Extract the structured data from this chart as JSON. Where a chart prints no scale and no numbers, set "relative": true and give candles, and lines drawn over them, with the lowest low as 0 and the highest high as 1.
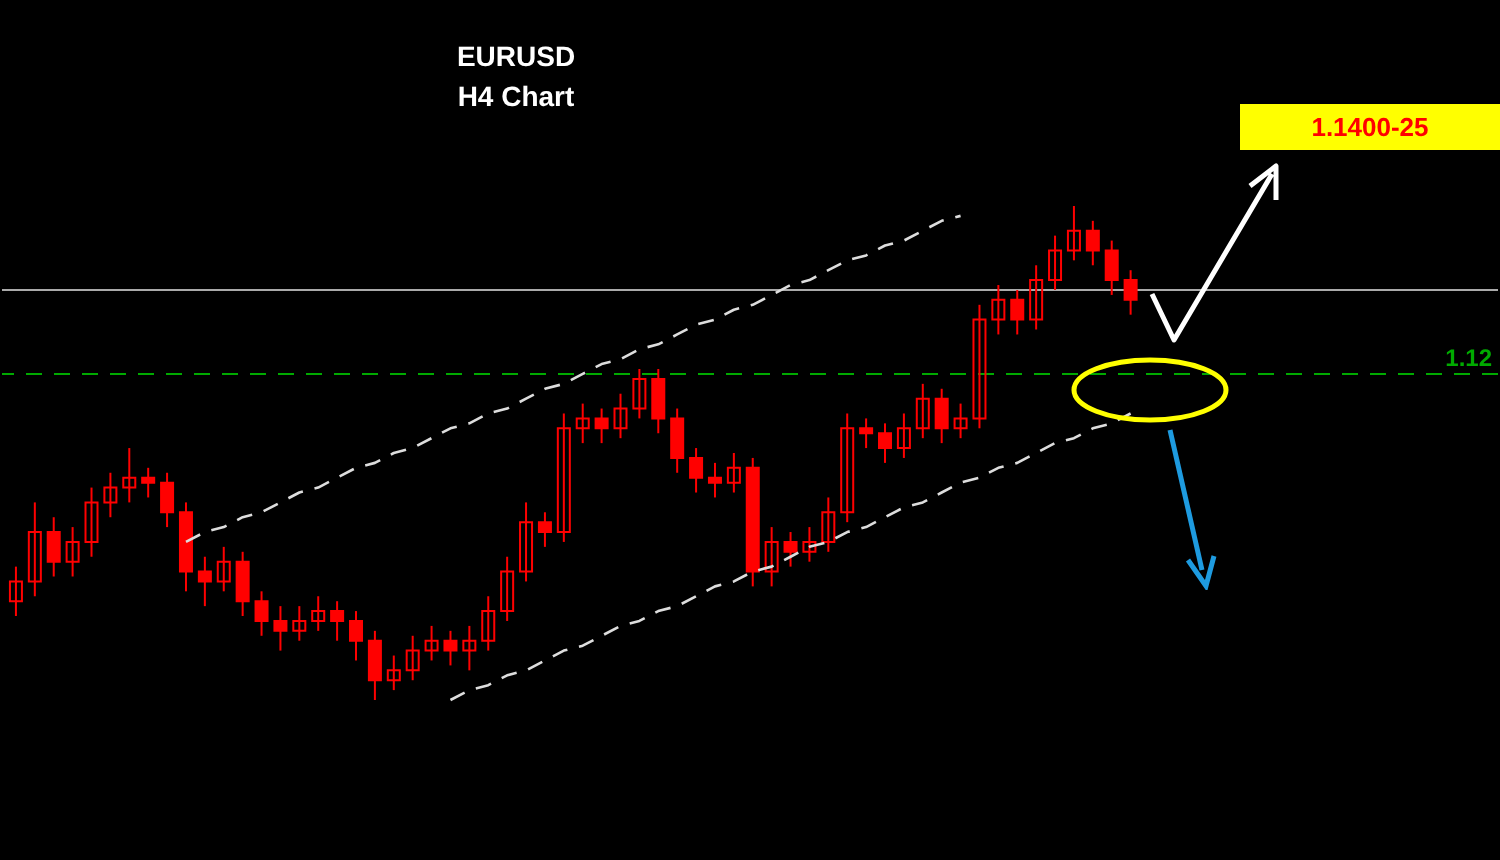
{
  "chart_data": {
    "type": "candlestick",
    "title": "EURUSD",
    "subtitle": "H4 Chart",
    "relative": true,
    "categories": [
      null,
      null,
      null,
      null,
      null,
      null,
      null,
      null,
      null,
      null,
      null,
      null,
      null,
      null,
      null,
      null,
      null,
      null,
      null,
      null,
      null,
      null,
      null,
      null,
      null,
      null,
      null,
      null,
      null,
      null,
      null,
      null,
      null,
      null,
      null,
      null,
      null,
      null,
      null,
      null,
      null,
      null,
      null,
      null,
      null,
      null,
      null,
      null,
      null,
      null,
      null,
      null,
      null,
      null,
      null,
      null,
      null,
      null,
      null,
      null
    ],
    "series": [
      {
        "color": "#ff0000",
        "ohlc": [
          [
            0.2,
            0.27,
            0.17,
            0.24
          ],
          [
            0.24,
            0.4,
            0.21,
            0.34
          ],
          [
            0.34,
            0.37,
            0.25,
            0.28
          ],
          [
            0.28,
            0.35,
            0.25,
            0.32
          ],
          [
            0.32,
            0.43,
            0.29,
            0.4
          ],
          [
            0.4,
            0.46,
            0.37,
            0.43
          ],
          [
            0.43,
            0.51,
            0.4,
            0.45
          ],
          [
            0.45,
            0.47,
            0.41,
            0.44
          ],
          [
            0.44,
            0.46,
            0.35,
            0.38
          ],
          [
            0.38,
            0.4,
            0.22,
            0.26
          ],
          [
            0.26,
            0.29,
            0.19,
            0.24
          ],
          [
            0.24,
            0.31,
            0.22,
            0.28
          ],
          [
            0.28,
            0.3,
            0.17,
            0.2
          ],
          [
            0.2,
            0.22,
            0.13,
            0.16
          ],
          [
            0.16,
            0.19,
            0.1,
            0.14
          ],
          [
            0.14,
            0.19,
            0.12,
            0.16
          ],
          [
            0.16,
            0.21,
            0.14,
            0.18
          ],
          [
            0.18,
            0.2,
            0.12,
            0.16
          ],
          [
            0.16,
            0.18,
            0.08,
            0.12
          ],
          [
            0.12,
            0.14,
            0.0,
            0.04
          ],
          [
            0.04,
            0.09,
            0.02,
            0.06
          ],
          [
            0.06,
            0.13,
            0.04,
            0.1
          ],
          [
            0.1,
            0.15,
            0.08,
            0.12
          ],
          [
            0.12,
            0.14,
            0.07,
            0.1
          ],
          [
            0.1,
            0.15,
            0.06,
            0.12
          ],
          [
            0.12,
            0.21,
            0.1,
            0.18
          ],
          [
            0.18,
            0.29,
            0.16,
            0.26
          ],
          [
            0.26,
            0.4,
            0.24,
            0.36
          ],
          [
            0.36,
            0.38,
            0.31,
            0.34
          ],
          [
            0.34,
            0.58,
            0.32,
            0.55
          ],
          [
            0.55,
            0.6,
            0.52,
            0.57
          ],
          [
            0.57,
            0.59,
            0.52,
            0.55
          ],
          [
            0.55,
            0.62,
            0.53,
            0.59
          ],
          [
            0.59,
            0.67,
            0.57,
            0.65
          ],
          [
            0.65,
            0.67,
            0.54,
            0.57
          ],
          [
            0.57,
            0.59,
            0.46,
            0.49
          ],
          [
            0.49,
            0.51,
            0.42,
            0.45
          ],
          [
            0.45,
            0.48,
            0.41,
            0.44
          ],
          [
            0.44,
            0.5,
            0.42,
            0.47
          ],
          [
            0.47,
            0.49,
            0.23,
            0.26
          ],
          [
            0.26,
            0.35,
            0.23,
            0.32
          ],
          [
            0.32,
            0.34,
            0.27,
            0.3
          ],
          [
            0.3,
            0.35,
            0.28,
            0.32
          ],
          [
            0.32,
            0.41,
            0.3,
            0.38
          ],
          [
            0.38,
            0.58,
            0.36,
            0.55
          ],
          [
            0.55,
            0.57,
            0.51,
            0.54
          ],
          [
            0.54,
            0.56,
            0.48,
            0.51
          ],
          [
            0.51,
            0.58,
            0.49,
            0.55
          ],
          [
            0.55,
            0.64,
            0.53,
            0.61
          ],
          [
            0.61,
            0.63,
            0.52,
            0.55
          ],
          [
            0.55,
            0.6,
            0.53,
            0.57
          ],
          [
            0.57,
            0.8,
            0.55,
            0.77
          ],
          [
            0.77,
            0.84,
            0.74,
            0.81
          ],
          [
            0.81,
            0.83,
            0.74,
            0.77
          ],
          [
            0.77,
            0.88,
            0.75,
            0.85
          ],
          [
            0.85,
            0.94,
            0.83,
            0.91
          ],
          [
            0.91,
            1.0,
            0.89,
            0.95
          ],
          [
            0.95,
            0.97,
            0.88,
            0.91
          ],
          [
            0.91,
            0.93,
            0.82,
            0.85
          ],
          [
            0.85,
            0.87,
            0.78,
            0.81
          ]
        ]
      },
      {
        "type": "line",
        "color": "#dddddd",
        "line_style": "dashed",
        "values": [
          null,
          null,
          null,
          null,
          null,
          null,
          null,
          null,
          null,
          0.32,
          0.34,
          0.35,
          0.37,
          0.38,
          0.4,
          0.42,
          0.43,
          0.45,
          0.47,
          0.48,
          0.5,
          0.51,
          0.53,
          0.55,
          0.56,
          0.58,
          0.59,
          0.61,
          0.63,
          0.64,
          0.66,
          0.68,
          0.69,
          0.71,
          0.72,
          0.74,
          0.76,
          0.77,
          0.79,
          0.8,
          0.82,
          0.84,
          0.85,
          0.87,
          0.89,
          0.9,
          0.92,
          0.93,
          0.95,
          0.97,
          0.98,
          null,
          null,
          null,
          null,
          null,
          null,
          null,
          null,
          null
        ]
      },
      {
        "type": "line",
        "color": "#dddddd",
        "line_style": "dashed",
        "values": [
          null,
          null,
          null,
          null,
          null,
          null,
          null,
          null,
          null,
          null,
          null,
          null,
          null,
          null,
          null,
          null,
          null,
          null,
          null,
          null,
          null,
          null,
          null,
          0,
          0.02,
          0.03,
          0.05,
          0.06,
          0.08,
          0.1,
          0.11,
          0.13,
          0.15,
          0.16,
          0.18,
          0.19,
          0.21,
          0.23,
          0.24,
          0.26,
          0.27,
          0.29,
          0.31,
          0.32,
          0.34,
          0.35,
          0.37,
          0.39,
          0.4,
          0.42,
          0.44,
          0.45,
          0.47,
          0.48,
          0.5,
          0.52,
          0.53,
          0.55,
          0.56,
          0.58
        ]
      }
    ],
    "ref_lines": [
      {
        "axis": "y",
        "value": 0.66,
        "color": "#00aa00",
        "line_style": "dashed"
      },
      {
        "axis": "y",
        "value": 0.83,
        "color": "#aaaaaa",
        "line_style": "solid"
      }
    ],
    "annotations": [
      "1.1400-25",
      "1.12"
    ]
  }
}
